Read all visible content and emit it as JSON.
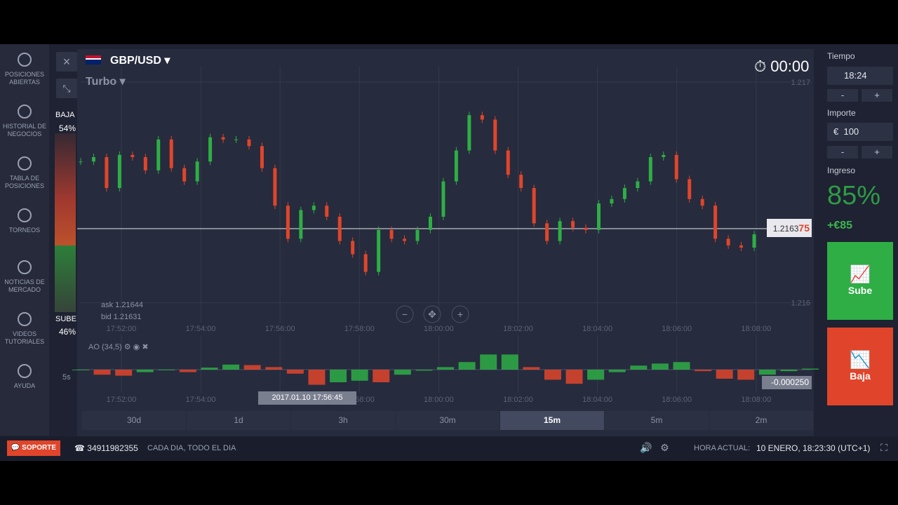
{
  "sidebar": [
    "POSICIONES ABIERTAS",
    "HISTORIAL DE NEGOCIOS",
    "TABLA DE POSICIONES",
    "TORNEOS",
    "NOTICIAS DE MERCADO",
    "VIDEOS TUTORIALES",
    "AYUDA"
  ],
  "asset": "GBP/USD",
  "mode": "Turbo",
  "timer": "00:00",
  "sentiment": {
    "down_label": "BAJA",
    "down": "54%",
    "up_label": "SUBE",
    "up": "46%"
  },
  "price_chart": {
    "type": "candlestick",
    "values": [
      1.21664,
      1.21666,
      1.21652,
      1.21667,
      1.21666,
      1.2166,
      1.21674,
      1.21661,
      1.21655,
      1.21664,
      1.21675,
      1.21674,
      1.21674,
      1.21671,
      1.21661,
      1.21644,
      1.21629,
      1.21642,
      1.21644,
      1.21639,
      1.21628,
      1.21622,
      1.21614,
      1.21633,
      1.21629,
      1.21628,
      1.21633,
      1.21639,
      1.21655,
      1.21669,
      1.21685,
      1.21683,
      1.21669,
      1.21658,
      1.21652,
      1.21636,
      1.21628,
      1.21637,
      1.21634,
      1.21633,
      1.21645,
      1.21647,
      1.21652,
      1.21655,
      1.21666,
      1.21667,
      1.21656,
      1.21647,
      1.21644,
      1.21629,
      1.21626,
      1.21625,
      1.21631
    ],
    "ylim": [
      1.21591,
      1.21707
    ],
    "yticks": [
      1.216,
      1.217
    ],
    "xticks": [
      "17:52:00",
      "17:54:00",
      "17:56:00",
      "17:58:00",
      "18:00:00",
      "18:02:00",
      "18:04:00",
      "18:06:00",
      "18:08:00"
    ],
    "current": "1.2163",
    "current_tail": "75",
    "ask": "ask 1.21644",
    "bid": "bid 1.21631"
  },
  "indicator": {
    "label": "AO (34,5)",
    "values": [
      0,
      -0.0001,
      -0.00012,
      -5e-05,
      0,
      -5e-05,
      4e-05,
      0.0001,
      9e-05,
      5e-05,
      -8e-05,
      -0.0003,
      -0.00025,
      -0.00022,
      -0.00025,
      -0.0001,
      -2e-05,
      5e-05,
      0.00015,
      0.0003,
      0.0003,
      5e-05,
      -0.0002,
      -0.00028,
      -0.0002,
      -5e-05,
      8e-05,
      0.00012,
      0.00015,
      -3e-05,
      -0.00018,
      -0.0002,
      -0.0001,
      -3e-05,
      2e-05
    ],
    "current": "-0.000250",
    "tooltip": "2017.01.10 17:56:45",
    "interval": "5s"
  },
  "timeframes": [
    "30d",
    "1d",
    "3h",
    "30m",
    "15m",
    "5m",
    "2m"
  ],
  "right_panel": {
    "time_label": "Tiempo",
    "time": "18:24",
    "amount_label": "Importe",
    "currency": "€",
    "amount": "100",
    "minus": "-",
    "plus": "+",
    "income_label": "Ingreso",
    "income_pct": "85%",
    "income": "+€85",
    "up": "Sube",
    "down": "Baja"
  },
  "footer": {
    "support": "SOPORTE",
    "phone": "34911982355",
    "hours": "CADA DIA, TODO EL DIA",
    "time_label": "HORA ACTUAL:",
    "time": "10 ENERO, 18:23:30 (UTC+1)"
  }
}
